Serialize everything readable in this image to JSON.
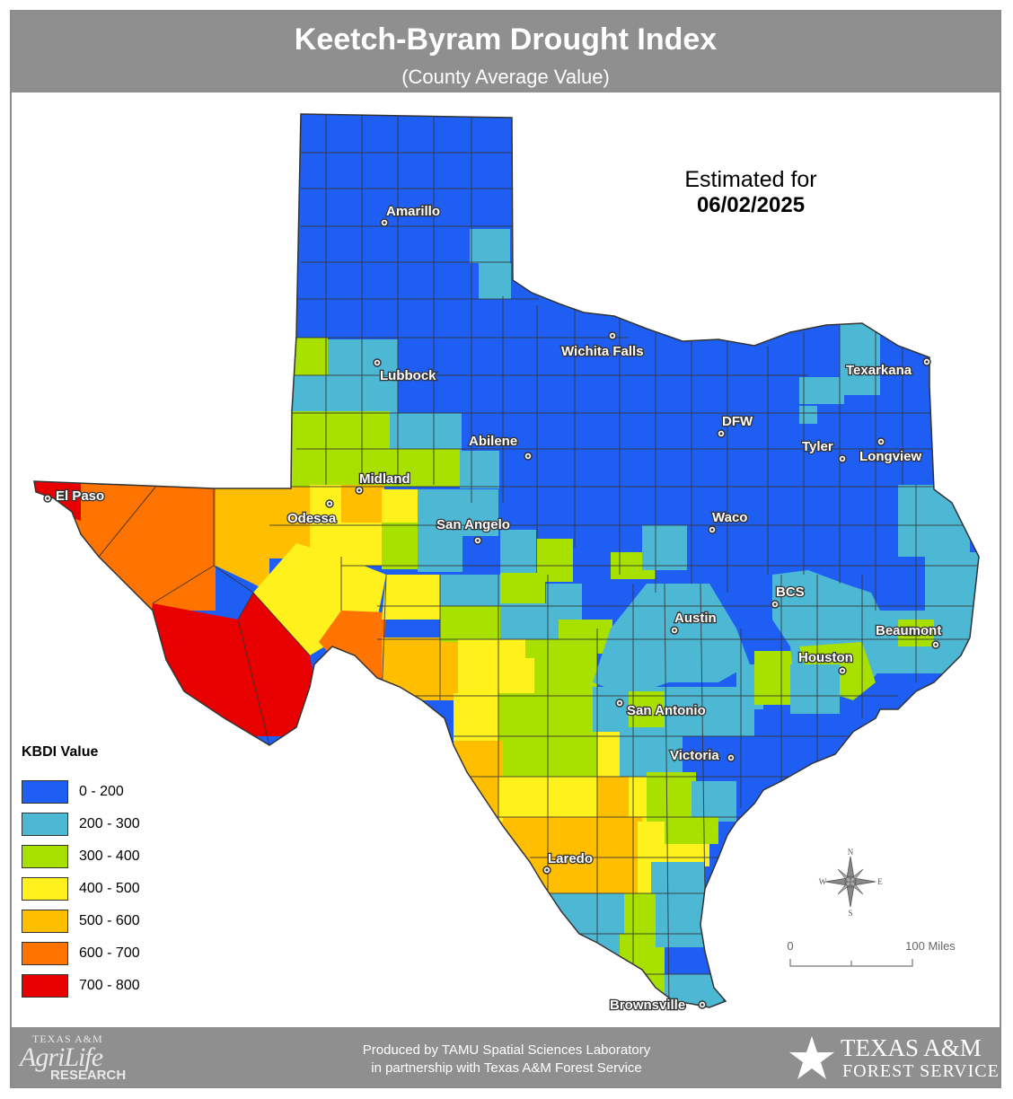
{
  "header": {
    "title": "Keetch-Byram Drought Index",
    "subtitle": "(County Average Value)"
  },
  "estimate": {
    "label": "Estimated for",
    "date": "06/02/2025"
  },
  "legend": {
    "title": "KBDI Value",
    "items": [
      {
        "label": "0 - 200",
        "color": "#1f5ef2"
      },
      {
        "label": "200 - 300",
        "color": "#4db8d4"
      },
      {
        "label": "300 - 400",
        "color": "#a8e000"
      },
      {
        "label": "400 - 500",
        "color": "#fff21c"
      },
      {
        "label": "500 - 600",
        "color": "#ffbf00"
      },
      {
        "label": "600 - 700",
        "color": "#ff7300"
      },
      {
        "label": "700 - 800",
        "color": "#e80000"
      }
    ]
  },
  "cities": [
    {
      "name": "Amarillo",
      "kbdi_class": "0 - 200"
    },
    {
      "name": "Lubbock",
      "kbdi_class": "200 - 300"
    },
    {
      "name": "Wichita Falls",
      "kbdi_class": "0 - 200"
    },
    {
      "name": "Texarkana",
      "kbdi_class": "0 - 200"
    },
    {
      "name": "DFW",
      "kbdi_class": "0 - 200"
    },
    {
      "name": "Tyler",
      "kbdi_class": "0 - 200"
    },
    {
      "name": "Longview",
      "kbdi_class": "0 - 200"
    },
    {
      "name": "Abilene",
      "kbdi_class": "0 - 200"
    },
    {
      "name": "Midland",
      "kbdi_class": "500 - 600"
    },
    {
      "name": "Odessa",
      "kbdi_class": "500 - 600"
    },
    {
      "name": "El Paso",
      "kbdi_class": "700 - 800"
    },
    {
      "name": "San Angelo",
      "kbdi_class": "0 - 200"
    },
    {
      "name": "Waco",
      "kbdi_class": "0 - 200"
    },
    {
      "name": "BCS",
      "kbdi_class": "200 - 300"
    },
    {
      "name": "Austin",
      "kbdi_class": "200 - 300"
    },
    {
      "name": "Beaumont",
      "kbdi_class": "200 - 300"
    },
    {
      "name": "Houston",
      "kbdi_class": "300 - 400"
    },
    {
      "name": "San Antonio",
      "kbdi_class": "200 - 300"
    },
    {
      "name": "Victoria",
      "kbdi_class": "0 - 200"
    },
    {
      "name": "Laredo",
      "kbdi_class": "500 - 600"
    },
    {
      "name": "Brownsville",
      "kbdi_class": "200 - 300"
    }
  ],
  "compass": {
    "n": "N",
    "s": "S",
    "e": "E",
    "w": "W"
  },
  "scale": {
    "start": "0",
    "end": "100 Miles"
  },
  "footer": {
    "credit_line1": "Produced by TAMU Spatial Sciences Laboratory",
    "credit_line2": "in partnership with Texas A&M Forest Service",
    "left_logo": "Texas A&M AgriLife Research",
    "right_logo_line1": "Texas A&M",
    "right_logo_line2": "Forest Service"
  },
  "colors": {
    "frame": "#8c8c8c",
    "banner": "#8f8f8f",
    "county_line": "#333333"
  }
}
